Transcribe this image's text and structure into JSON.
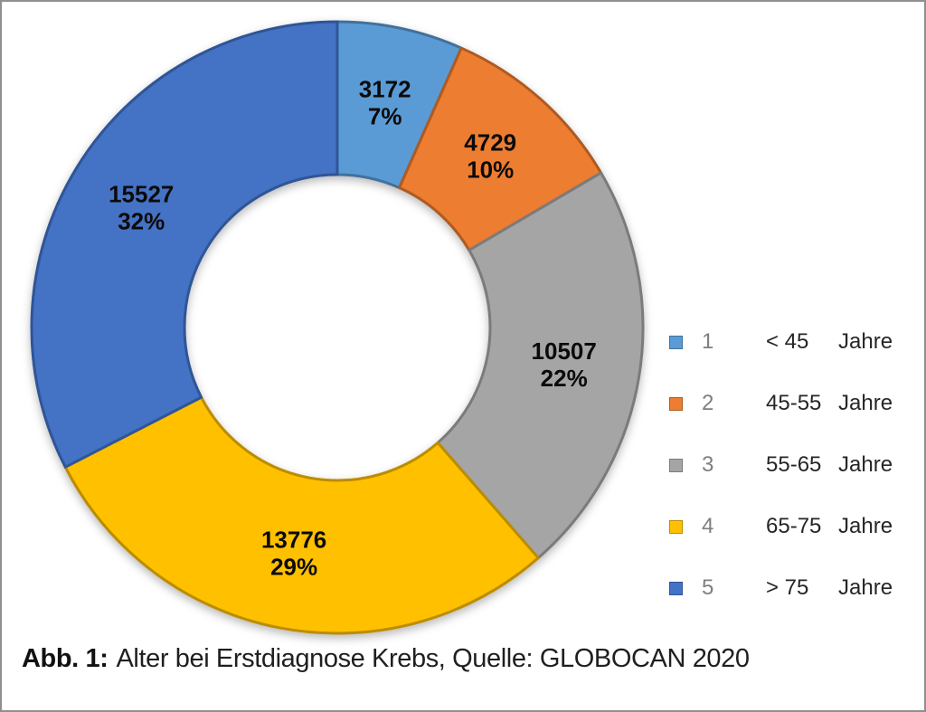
{
  "figure": {
    "caption": {
      "prefix": "Abb. 1:",
      "text": "Alter bei Erstdiagnose Krebs, Quelle: GLOBOCAN 2020"
    },
    "background": "#ffffff",
    "frame_border_color": "#8f8f8f"
  },
  "chart_data": {
    "type": "pie",
    "subtype": "donut",
    "title": "",
    "categories": [
      "< 45 Jahre",
      "45-55 Jahre",
      "55-65 Jahre",
      "65-75 Jahre",
      "> 75 Jahre"
    ],
    "values": [
      3172,
      4729,
      10507,
      13776,
      15527
    ],
    "value_labels": [
      "3172",
      "4729",
      "10507",
      "13776",
      "15527"
    ],
    "percent_labels": [
      "7%",
      "10%",
      "22%",
      "29%",
      "32%"
    ],
    "colors": [
      "#5B9BD5",
      "#ED7D31",
      "#A5A5A5",
      "#FFC000",
      "#4472C4"
    ],
    "border_colors": [
      "#41719C",
      "#AE5A21",
      "#7B7B7B",
      "#BC8C00",
      "#2F5597"
    ],
    "start_angle_deg": 0,
    "clockwise": true,
    "inner_radius_ratio": 0.5,
    "legend_position": "right",
    "legend": [
      {
        "index": "1",
        "range": "< 45",
        "unit": "Jahre"
      },
      {
        "index": "2",
        "range": "45-55",
        "unit": "Jahre"
      },
      {
        "index": "3",
        "range": "55-65",
        "unit": "Jahre"
      },
      {
        "index": "4",
        "range": "65-75",
        "unit": "Jahre"
      },
      {
        "index": "5",
        "range": "> 75",
        "unit": "Jahre"
      }
    ]
  }
}
